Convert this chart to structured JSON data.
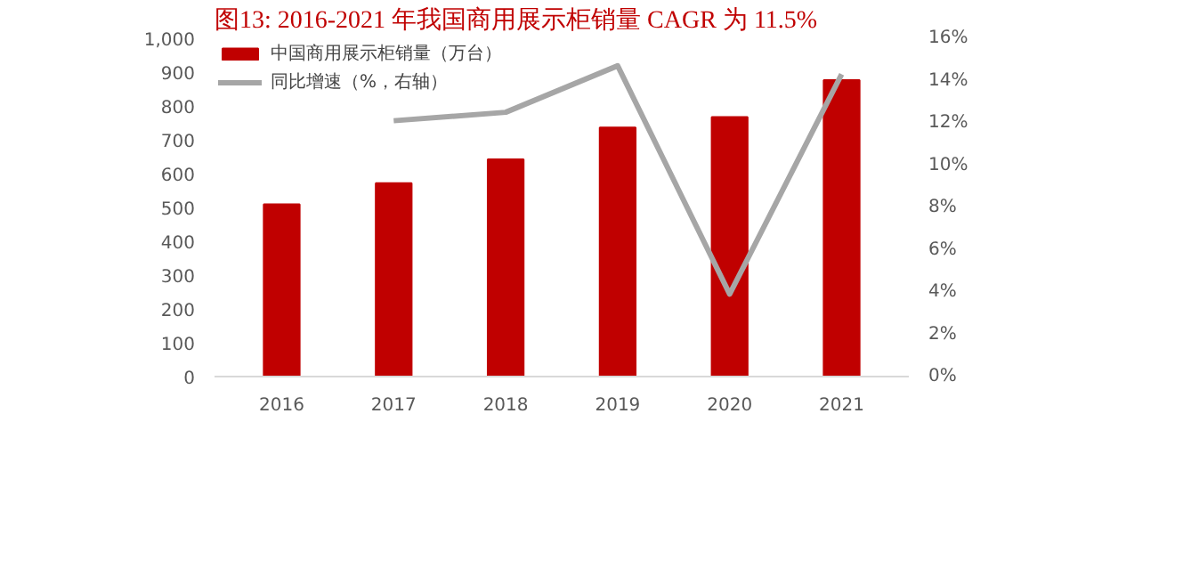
{
  "chart_data": {
    "type": "bar",
    "title": "图13:   2016-2021 年我国商用展示柜销量 CAGR 为 11.5%",
    "categories": [
      "2016",
      "2017",
      "2018",
      "2019",
      "2020",
      "2021"
    ],
    "series": [
      {
        "name": "中国商用展示柜销量（万台）",
        "color": "#c00000",
        "values": [
          509,
          572,
          642,
          736,
          767,
          876
        ]
      },
      {
        "name": "同比增速（%，右轴）",
        "color": "#a6a6a6",
        "type": "line",
        "axis": "y2",
        "values": [
          null,
          12.1,
          12.5,
          14.7,
          3.9,
          14.3
        ]
      }
    ],
    "ylim": [
      0,
      1000
    ],
    "yticks": [
      0,
      100,
      200,
      300,
      400,
      500,
      600,
      700,
      800,
      900,
      {
        "value": 1000,
        "label": "1,000"
      }
    ],
    "y2lim": [
      0,
      16
    ],
    "y2ticks": [
      {
        "value": 0,
        "label": "0%"
      },
      {
        "value": 2,
        "label": "2%"
      },
      {
        "value": 4,
        "label": "4%"
      },
      {
        "value": 6,
        "label": "6%"
      },
      {
        "value": 8,
        "label": "8%"
      },
      {
        "value": 10,
        "label": "10%"
      },
      {
        "value": 12,
        "label": "12%"
      },
      {
        "value": 14,
        "label": "14%"
      },
      {
        "value": 16,
        "label": "16%"
      }
    ],
    "grid": false,
    "legend": "top left"
  }
}
